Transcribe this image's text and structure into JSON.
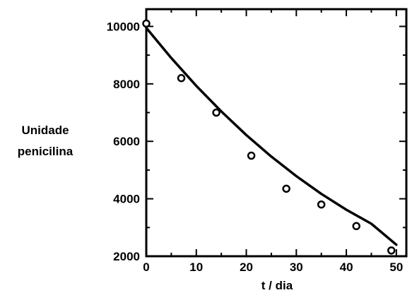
{
  "chart_data": {
    "type": "scatter",
    "title": "",
    "xlabel": "t / dia",
    "ylabel_lines": [
      "Unidade",
      "penicilina"
    ],
    "xlim": [
      0,
      52
    ],
    "ylim": [
      2000,
      10600
    ],
    "xticks": [
      0,
      10,
      20,
      30,
      40,
      50
    ],
    "yticks": [
      2000,
      4000,
      6000,
      8000,
      10000
    ],
    "grid": false,
    "legend": "none",
    "series": [
      {
        "kind": "points",
        "marker": "open-circle",
        "x": [
          0,
          7,
          14,
          21,
          28,
          35,
          42,
          49
        ],
        "y": [
          10100,
          8200,
          7000,
          5500,
          4350,
          3800,
          3050,
          2200
        ]
      },
      {
        "kind": "fitted-curve",
        "x": [
          0,
          5,
          10,
          15,
          20,
          25,
          30,
          35,
          40,
          45,
          50
        ],
        "y": [
          9950,
          8900,
          7930,
          7040,
          6220,
          5470,
          4790,
          4170,
          3620,
          3130,
          2400
        ]
      }
    ],
    "colors": {
      "axes": "#000000",
      "points": "#000000",
      "curve": "#000000",
      "background": "#ffffff"
    }
  }
}
